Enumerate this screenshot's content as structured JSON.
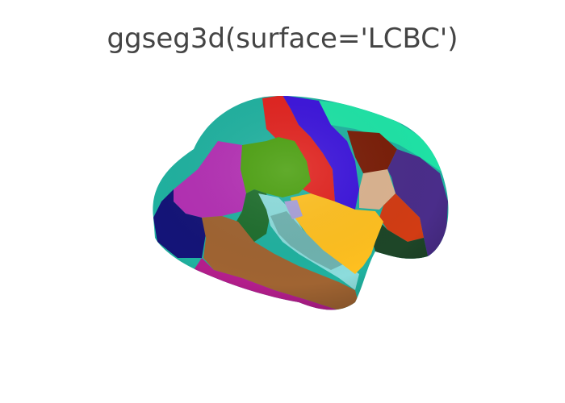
{
  "title": "ggseg3d(surface='LCBC')",
  "brain": {
    "view": "left lateral",
    "regions": [
      {
        "name": "superiorfrontal",
        "color": "#20B2A0"
      },
      {
        "name": "caudalmiddlefrontal",
        "color": "#1FE3A6"
      },
      {
        "name": "precentral",
        "color": "#E2231F"
      },
      {
        "name": "postcentral",
        "color": "#3C14DC"
      },
      {
        "name": "superiorparietal",
        "color": "#4A2D8A"
      },
      {
        "name": "supramarginal",
        "color": "#7A1E08"
      },
      {
        "name": "inferiorparietal",
        "color": "#DCB490"
      },
      {
        "name": "lateraloccipital",
        "color": "#1E4628"
      },
      {
        "name": "rostralmiddlefrontal",
        "color": "#B430B4"
      },
      {
        "name": "lateralorbitofrontal",
        "color": "#141478"
      },
      {
        "name": "parsopercularis",
        "color": "#4BA00F"
      },
      {
        "name": "parstriangularis",
        "color": "#1E6E2D"
      },
      {
        "name": "insula",
        "color": "#8CDCDC"
      },
      {
        "name": "bankssts",
        "color": "#FFC020"
      },
      {
        "name": "middletemporal",
        "color": "#A06432"
      },
      {
        "name": "inferiortemporal",
        "color": "#B41E8C"
      },
      {
        "name": "posteriorcingulate_edge",
        "color": "#D23C14"
      }
    ]
  }
}
